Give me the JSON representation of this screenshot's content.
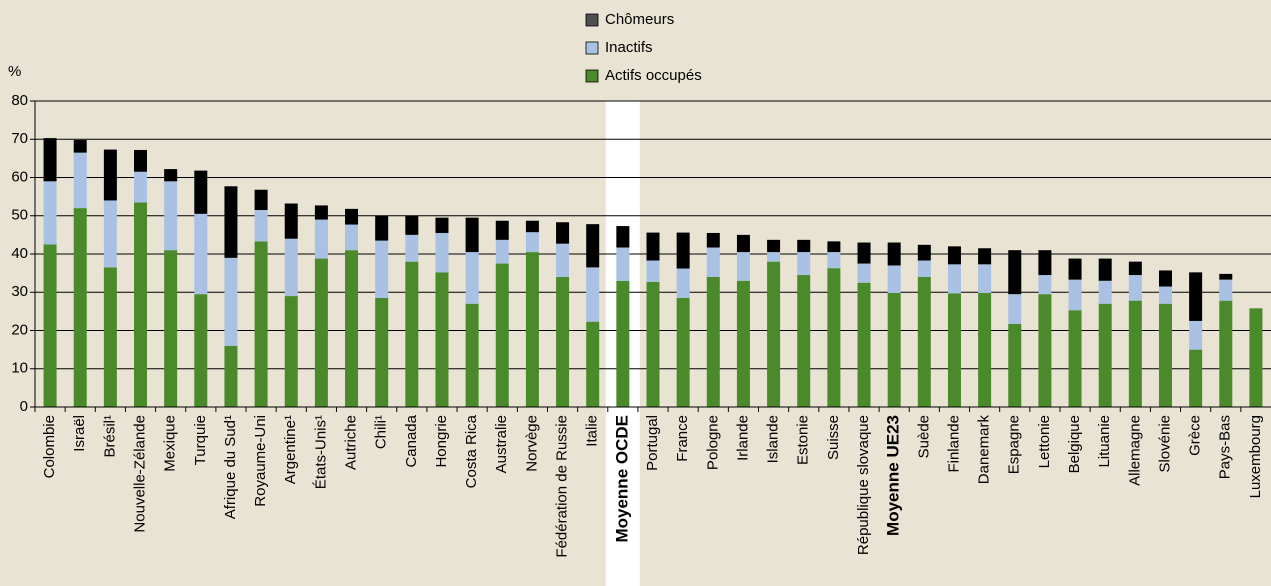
{
  "chart_data": {
    "type": "bar",
    "stacked": true,
    "y_label": "%",
    "categories": [
      "Colombie",
      "Israël",
      "Brésil¹",
      "Nouvelle-Zélande",
      "Mexique",
      "Turquie",
      "Afrique du Sud¹",
      "Royaume-Uni",
      "Argentine¹",
      "États-Unis¹",
      "Autriche",
      "Chili¹",
      "Canada",
      "Hongrie",
      "Costa Rica",
      "Australie",
      "Norvège",
      "Fédération de Russie",
      "Italie",
      "Moyenne OCDE",
      "Portugal",
      "France",
      "Pologne",
      "Irlande",
      "Islande",
      "Estonie",
      "Suisse",
      "République slovaque",
      "Moyenne UE23",
      "Suède",
      "Finlande",
      "Danemark",
      "Espagne",
      "Lettonie",
      "Belgique",
      "Lituanie",
      "Allemagne",
      "Slovénie",
      "Grèce",
      "Pays-Bas",
      "Luxembourg"
    ],
    "series": [
      {
        "name": "Actifs occupés",
        "color": "#4a8a2a",
        "values": [
          42.5,
          52,
          36.5,
          53.5,
          41,
          29.5,
          16,
          43.3,
          29,
          38.8,
          41,
          28.5,
          38,
          35.2,
          27,
          37.5,
          40.5,
          34,
          22.3,
          33,
          32.7,
          28.5,
          34,
          33,
          38,
          34.5,
          36.3,
          32.5,
          29.8,
          34,
          29.7,
          29.8,
          21.7,
          29.5,
          25.3,
          27,
          27.8,
          27,
          15,
          27.8,
          25.8
        ]
      },
      {
        "name": "Inactifs",
        "color": "#a9c1e2",
        "values": [
          16.5,
          14.5,
          17.5,
          8,
          18,
          21,
          23,
          8.2,
          15,
          10.2,
          6.7,
          15,
          7,
          10.3,
          13.5,
          6.2,
          5.2,
          8.7,
          14.2,
          8.7,
          5.6,
          7.7,
          7.7,
          7.5,
          2.5,
          6,
          4.2,
          5,
          7.2,
          4.3,
          7.6,
          7.5,
          7.8,
          5,
          8,
          6,
          6.7,
          4.5,
          7.5,
          5.5,
          0
        ]
      },
      {
        "name": "Chômeurs",
        "color": "#000000",
        "legend_color": "#4d4d4d",
        "values": [
          11.3,
          3.3,
          13.3,
          5.7,
          3.2,
          11.3,
          18.7,
          5.3,
          9.2,
          3.7,
          4.1,
          6.5,
          5,
          4,
          9,
          5,
          3,
          5.6,
          11.3,
          5.6,
          7.3,
          9.4,
          3.8,
          4.5,
          3.2,
          3.2,
          2.8,
          5.5,
          6,
          4.1,
          4.7,
          4.2,
          11.5,
          6.5,
          5.5,
          5.8,
          3.5,
          4.2,
          12.7,
          1.5,
          0
        ]
      }
    ],
    "bold_categories": [
      19,
      28
    ],
    "highlight_band": 19,
    "ylim": [
      0,
      80
    ],
    "yticks": [
      0,
      10,
      20,
      30,
      40,
      50,
      60,
      70,
      80
    ],
    "grid": true
  }
}
